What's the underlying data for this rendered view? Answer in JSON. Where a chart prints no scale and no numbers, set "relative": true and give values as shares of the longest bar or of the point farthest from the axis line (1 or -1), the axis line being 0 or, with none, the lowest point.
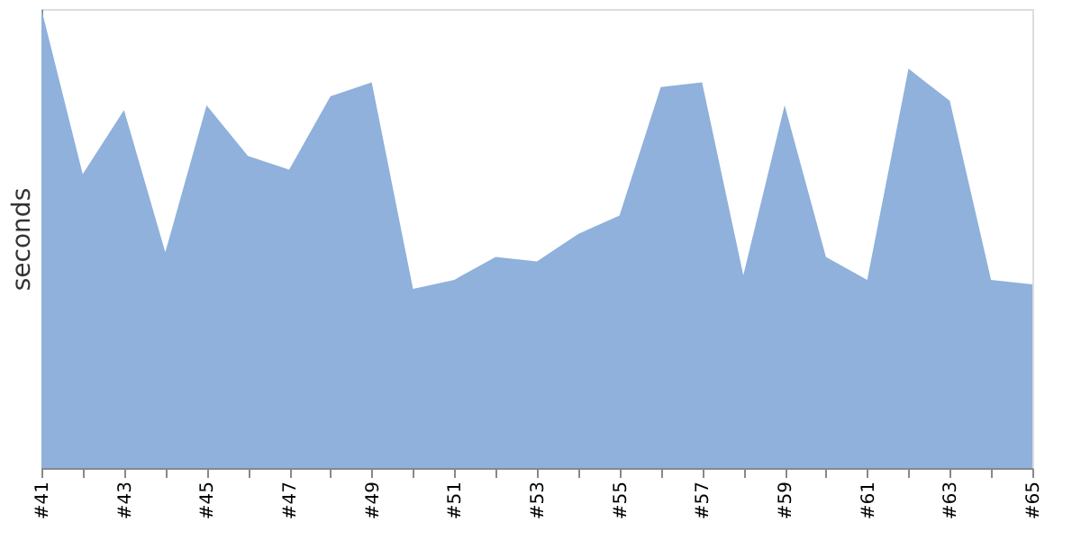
{
  "chart_data": {
    "type": "area",
    "relative": true,
    "ylabel": "seconds",
    "color": "#8fb1db",
    "categories": [
      "#41",
      null,
      "#43",
      null,
      "#45",
      null,
      "#47",
      null,
      "#49",
      null,
      "#51",
      null,
      "#53",
      null,
      "#55",
      null,
      "#57",
      null,
      "#59",
      null,
      "#61",
      null,
      "#63",
      null,
      "#65"
    ],
    "values": [
      1,
      0.64,
      0.78,
      0.47,
      0.79,
      0.68,
      0.65,
      0.81,
      0.84,
      0.39,
      0.41,
      0.46,
      0.45,
      0.51,
      0.55,
      0.83,
      0.84,
      0.42,
      0.79,
      0.46,
      0.41,
      0.87,
      0.8,
      0.41,
      0.4
    ]
  }
}
